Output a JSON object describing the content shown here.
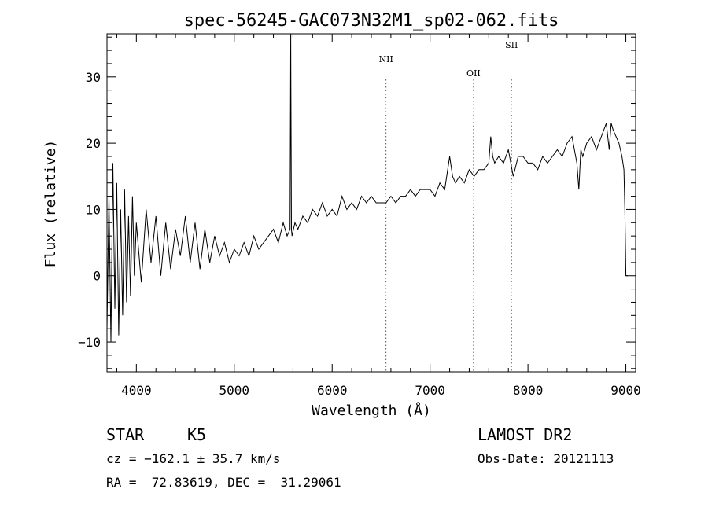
{
  "chart_data": {
    "type": "line",
    "title": "spec-56245-GAC073N32M1_sp02-062.fits",
    "xlabel": "Wavelength (Å)",
    "ylabel": "Flux (relative)",
    "xlim": [
      3700,
      9100
    ],
    "ylim": [
      -14.5,
      36.5
    ],
    "xticks": [
      4000,
      5000,
      6000,
      7000,
      8000,
      9000
    ],
    "yticks": [
      -10,
      0,
      10,
      20,
      30
    ],
    "xtick_labels": [
      "4000",
      "5000",
      "6000",
      "7000",
      "8000",
      "9000"
    ],
    "ytick_labels": [
      "−10",
      "0",
      "10",
      "20",
      "30"
    ],
    "grid": false,
    "series": [
      {
        "x": [
          3700,
          3720,
          3740,
          3760,
          3780,
          3800,
          3820,
          3840,
          3860,
          3880,
          3900,
          3920,
          3940,
          3960,
          3980,
          4000,
          4050,
          4100,
          4150,
          4200,
          4250,
          4300,
          4350,
          4400,
          4450,
          4500,
          4550,
          4600,
          4650,
          4700,
          4750,
          4800,
          4850,
          4900,
          4950,
          5000,
          5050,
          5100,
          5150,
          5200,
          5250,
          5300,
          5350,
          5400,
          5450,
          5500,
          5540,
          5570,
          5577,
          5578,
          5584,
          5590,
          5620,
          5650,
          5700,
          5750,
          5800,
          5850,
          5900,
          5950,
          6000,
          6050,
          6100,
          6150,
          6200,
          6250,
          6300,
          6350,
          6400,
          6450,
          6500,
          6550,
          6600,
          6650,
          6700,
          6750,
          6800,
          6850,
          6900,
          6950,
          7000,
          7050,
          7100,
          7150,
          7200,
          7230,
          7260,
          7300,
          7350,
          7400,
          7450,
          7500,
          7550,
          7600,
          7620,
          7640,
          7660,
          7700,
          7750,
          7800,
          7850,
          7900,
          7950,
          8000,
          8050,
          8100,
          8150,
          8200,
          8250,
          8300,
          8350,
          8400,
          8450,
          8500,
          8520,
          8540,
          8560,
          8600,
          8650,
          8700,
          8750,
          8800,
          8830,
          8850,
          8870,
          8900,
          8930,
          8960,
          8980,
          8990,
          9000,
          9010,
          9020
        ],
        "y": [
          -8,
          12,
          -10,
          17,
          -5,
          14,
          -9,
          10,
          -6,
          13,
          -4,
          9,
          -3,
          12,
          0,
          8,
          -1,
          10,
          2,
          9,
          0,
          8,
          1,
          7,
          3,
          9,
          2,
          8,
          1,
          7,
          2,
          6,
          3,
          5,
          2,
          4,
          3,
          5,
          3,
          6,
          4,
          5,
          6,
          7,
          5,
          8,
          6,
          7,
          37,
          32,
          7,
          6,
          8,
          7,
          9,
          8,
          10,
          9,
          11,
          9,
          10,
          9,
          12,
          10,
          11,
          10,
          12,
          11,
          12,
          11,
          11,
          11,
          12,
          11,
          12,
          12,
          13,
          12,
          13,
          13,
          13,
          12,
          14,
          13,
          18,
          15,
          14,
          15,
          14,
          16,
          15,
          16,
          16,
          17,
          21,
          18,
          17,
          18,
          17,
          19,
          15,
          18,
          18,
          17,
          17,
          16,
          18,
          17,
          18,
          19,
          18,
          20,
          21,
          17,
          13,
          19,
          18,
          20,
          21,
          19,
          21,
          23,
          19,
          23,
          22,
          21,
          20,
          18,
          16,
          10,
          0,
          0,
          0
        ]
      }
    ],
    "lines": [
      {
        "name": "NII",
        "x": 6550
      },
      {
        "name": "OII",
        "x": 7444
      },
      {
        "name": "SII",
        "x": 7832
      }
    ]
  },
  "info": {
    "object_class": "STAR",
    "subclass": "K5",
    "cz_line": "cz = −162.1 ± 35.7 km/s",
    "radec_line": "RA =  72.83619, DEC =  31.29061",
    "survey": "LAMOST DR2",
    "obs_date": "Obs-Date: 20121113"
  }
}
